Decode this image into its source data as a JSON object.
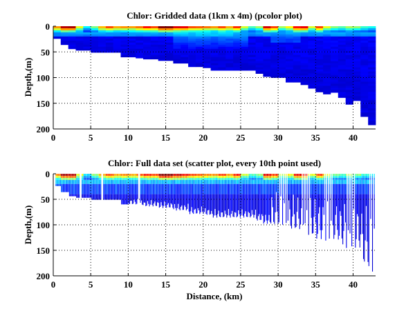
{
  "chart_data": [
    {
      "type": "heatmap",
      "title": "Chlor: Gridded data (1km x 4m) (pcolor plot)",
      "xlabel": "",
      "ylabel": "Depth,(m)",
      "xlim": [
        0,
        43
      ],
      "ylim": [
        0,
        200
      ],
      "y_reversed": true,
      "xticks": [
        "0",
        "5",
        "10",
        "15",
        "20",
        "25",
        "30",
        "35",
        "40"
      ],
      "yticks": [
        "0",
        "50",
        "100",
        "150",
        "200"
      ],
      "grid": "dotted",
      "cell_size_km": 1,
      "cell_size_m": 4,
      "colormap": "jet",
      "bottom_depth_m": [
        24,
        36,
        44,
        47,
        47,
        51,
        51,
        51,
        51,
        60,
        60,
        62,
        64,
        64,
        67,
        67,
        72,
        72,
        79,
        79,
        81,
        86,
        86,
        86,
        86,
        86,
        86,
        92,
        98,
        100,
        100,
        109,
        109,
        114,
        121,
        128,
        132,
        129,
        139,
        152,
        145,
        176,
        192
      ],
      "surface_chl_norm": [
        0.75,
        0.95,
        0.95,
        0.6,
        0.35,
        0.5,
        0.7,
        0.8,
        0.72,
        0.75,
        0.72,
        0.78,
        0.85,
        0.82,
        1.0,
        1.0,
        0.92,
        0.88,
        0.82,
        0.78,
        0.75,
        0.72,
        0.82,
        0.72,
        0.85,
        0.58,
        0.45,
        0.52,
        0.9,
        0.82,
        0.55,
        0.62,
        0.88,
        0.9,
        0.6,
        0.82,
        0.6,
        0.5,
        0.45,
        0.55,
        0.5,
        0.42,
        0.4
      ]
    },
    {
      "type": "scatter",
      "title": "Chlor: Full data set (scatter plot, every 10th point used)",
      "xlabel": "Distance, (km)",
      "ylabel": "Depth,(m)",
      "xlim": [
        0,
        43
      ],
      "ylim": [
        0,
        200
      ],
      "y_reversed": true,
      "xticks": [
        "0",
        "5",
        "10",
        "15",
        "20",
        "25",
        "30",
        "35",
        "40"
      ],
      "yticks": [
        "0",
        "50",
        "100",
        "150",
        "200"
      ],
      "grid": "dotted",
      "colormap": "jet"
    }
  ]
}
